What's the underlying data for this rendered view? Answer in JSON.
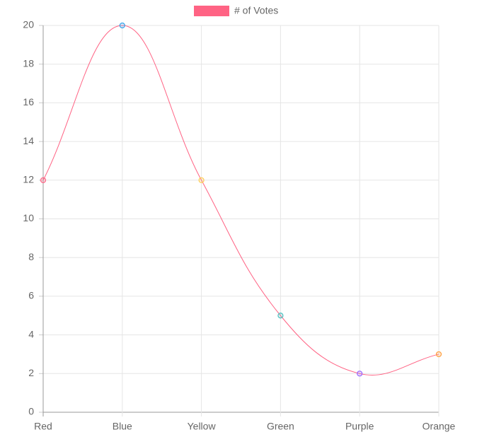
{
  "chart_data": {
    "type": "line",
    "categories": [
      "Red",
      "Blue",
      "Yellow",
      "Green",
      "Purple",
      "Orange"
    ],
    "series": [
      {
        "name": "# of Votes",
        "color": "#ff6384",
        "values": [
          12,
          20,
          12,
          5,
          2,
          3
        ],
        "point_colors": [
          "#ff6384",
          "#36a2eb",
          "#ffce56",
          "#4bc0c0",
          "#9966ff",
          "#ff9f40"
        ]
      }
    ],
    "ylim": [
      0,
      20
    ],
    "yticks": [
      0,
      2,
      4,
      6,
      8,
      10,
      12,
      14,
      16,
      18,
      20
    ],
    "grid": true,
    "legend": "top"
  }
}
